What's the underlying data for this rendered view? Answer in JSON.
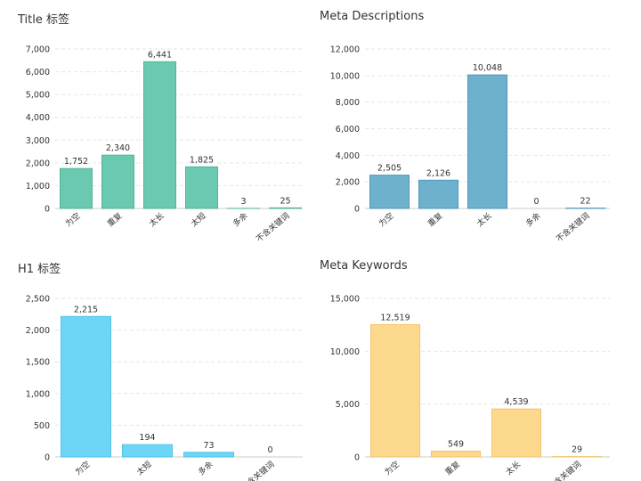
{
  "chart_data": [
    {
      "type": "bar",
      "title": "Title 标签",
      "categories": [
        "为空",
        "重复",
        "太长",
        "太短",
        "多余",
        "不含关键词"
      ],
      "values": [
        1752,
        2340,
        6441,
        1825,
        3,
        25
      ],
      "value_labels": [
        "1,752",
        "2,340",
        "6,441",
        "1,825",
        "3",
        "25"
      ],
      "yticks": [
        "0",
        "1,000",
        "2,000",
        "3,000",
        "4,000",
        "5,000",
        "6,000",
        "7,000"
      ],
      "ylim": [
        0,
        7000
      ],
      "color": "#6cc9b1",
      "stroke": "#4fb597"
    },
    {
      "type": "bar",
      "title": "Meta Descriptions",
      "categories": [
        "为空",
        "重复",
        "太长",
        "多余",
        "不含关键词"
      ],
      "values": [
        2505,
        2126,
        10048,
        0,
        22
      ],
      "value_labels": [
        "2,505",
        "2,126",
        "10,048",
        "0",
        "22"
      ],
      "yticks": [
        "0",
        "2,000",
        "4,000",
        "6,000",
        "8,000",
        "10,000",
        "12,000"
      ],
      "ylim": [
        0,
        12000
      ],
      "color": "#6eb1cc",
      "stroke": "#4d98b8"
    },
    {
      "type": "bar",
      "title": "H1 标签",
      "categories": [
        "为空",
        "太短",
        "多余",
        "不含关键词"
      ],
      "values": [
        2215,
        194,
        73,
        0
      ],
      "value_labels": [
        "2,215",
        "194",
        "73",
        "0"
      ],
      "yticks": [
        "0",
        "500",
        "1,000",
        "1,500",
        "2,000",
        "2,500"
      ],
      "ylim": [
        0,
        2500
      ],
      "color": "#6dd6f7",
      "stroke": "#4fc3e9"
    },
    {
      "type": "bar",
      "title": "Meta Keywords",
      "categories": [
        "为空",
        "重复",
        "太长",
        "不含关键词"
      ],
      "values": [
        12519,
        549,
        4539,
        29
      ],
      "value_labels": [
        "12,519",
        "549",
        "4,539",
        "29"
      ],
      "yticks": [
        "0",
        "5,000",
        "10,000",
        "15,000"
      ],
      "ylim": [
        0,
        15000
      ],
      "color": "#fdd98e",
      "stroke": "#f0c46a"
    }
  ]
}
